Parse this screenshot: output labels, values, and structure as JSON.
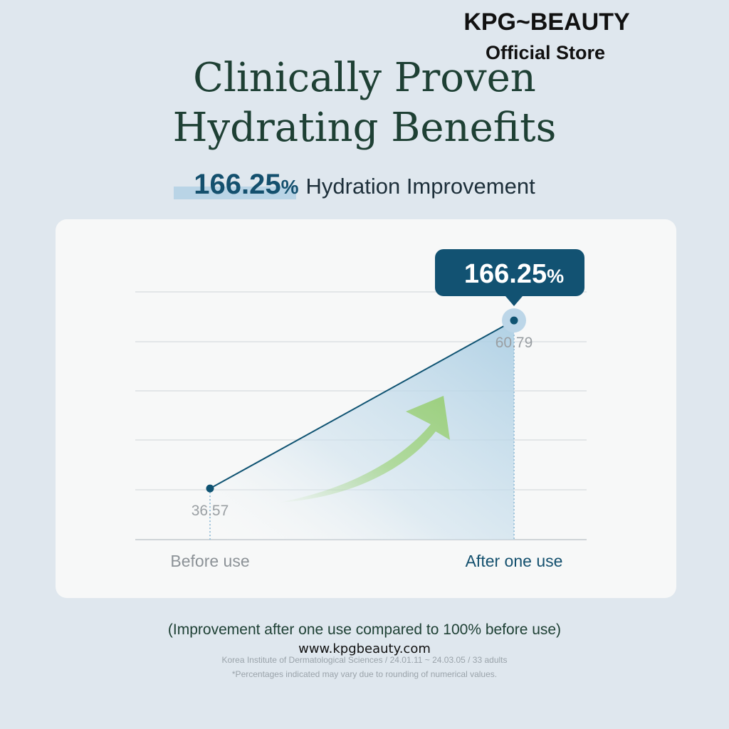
{
  "chart_data": {
    "type": "line",
    "brand": "KPG~BEAUTY",
    "store": "Official Store",
    "title": [
      "Clinically Proven",
      "Hydrating Benefits"
    ],
    "improvement": {
      "value": 166.25,
      "unit": "%",
      "text": "Hydration Improvement"
    },
    "categories": [
      "Before use",
      "After one use"
    ],
    "values": [
      36.57,
      60.79
    ],
    "ylim": [
      29.2,
      64.9
    ],
    "color": "#0f5372",
    "grid": true,
    "notes": [
      "(Improvement after one use compared to 100% before use)",
      "www.kpgbeauty.com",
      "Korea Institute of Dermatological Sciences / 24.01.11 ~ 24.03.05 / 33 adults",
      "*Percentages indicated may vary due to rounding of numerical values."
    ]
  }
}
